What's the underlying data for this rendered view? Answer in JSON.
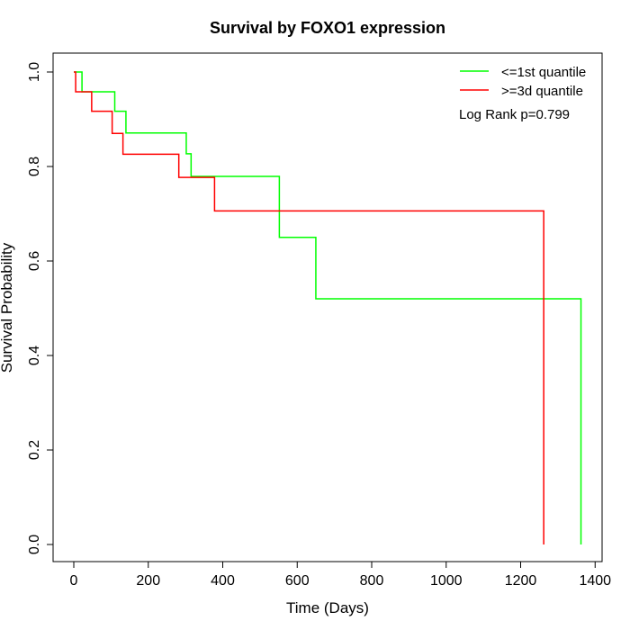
{
  "chart_data": {
    "type": "line",
    "title": "Survival by FOXO1 expression",
    "xlabel": "Time (Days)",
    "ylabel": "Survival Probability",
    "xlim": [
      0,
      1400
    ],
    "ylim": [
      0,
      1
    ],
    "xticks": [
      0,
      200,
      400,
      600,
      800,
      1000,
      1200,
      1400
    ],
    "yticks": [
      0.0,
      0.2,
      0.4,
      0.6,
      0.8,
      1.0
    ],
    "xtick_labels": [
      "0",
      "200",
      "400",
      "600",
      "800",
      "1000",
      "1200",
      "1400"
    ],
    "ytick_labels": [
      "0.0",
      "0.2",
      "0.4",
      "0.6",
      "0.8",
      "1.0"
    ],
    "legend_position": "top-right",
    "annotation": "Log Rank p=0.799",
    "series": [
      {
        "name": "<=1st quantile",
        "color": "#00ff00",
        "steps": [
          [
            0,
            1.0
          ],
          [
            22,
            0.958
          ],
          [
            110,
            0.917
          ],
          [
            140,
            0.871
          ],
          [
            302,
            0.827
          ],
          [
            315,
            0.779
          ],
          [
            552,
            0.65
          ],
          [
            650,
            0.52
          ],
          [
            1362,
            0.0
          ]
        ]
      },
      {
        "name": ">=3d quantile",
        "color": "#ff0000",
        "steps": [
          [
            0,
            1.0
          ],
          [
            5,
            0.958
          ],
          [
            48,
            0.917
          ],
          [
            103,
            0.87
          ],
          [
            132,
            0.826
          ],
          [
            282,
            0.777
          ],
          [
            378,
            0.706
          ],
          [
            1262,
            0.0
          ]
        ]
      }
    ]
  }
}
